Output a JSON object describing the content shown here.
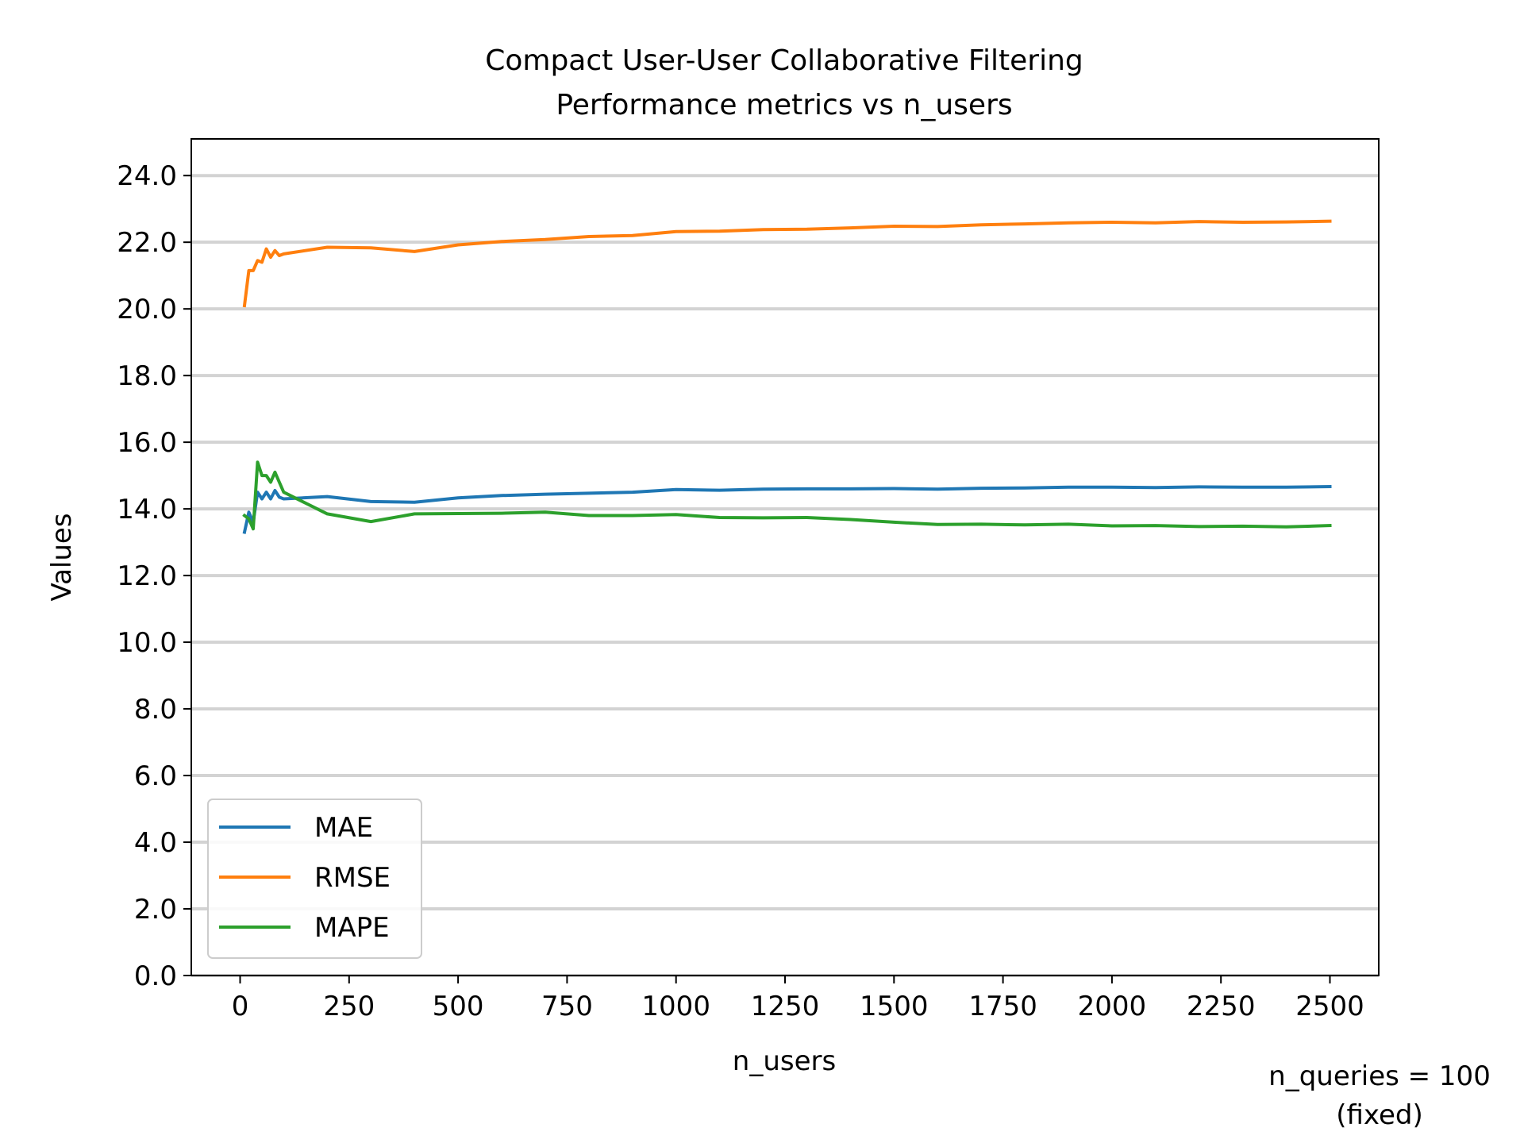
{
  "chart_data": {
    "type": "line",
    "title": "Compact User-User Collaborative Filtering",
    "subtitle": "Performance metrics vs n_users",
    "xlabel": "n_users",
    "ylabel": "Values",
    "annotation_line1": "n_queries = 100",
    "annotation_line2": "(fixed)",
    "xlim": [
      -112,
      2612
    ],
    "ylim": [
      0,
      25.1
    ],
    "xticks": [
      0,
      250,
      500,
      750,
      1000,
      1250,
      1500,
      1750,
      2000,
      2250,
      2500
    ],
    "xtick_labels": [
      "0",
      "250",
      "500",
      "750",
      "1000",
      "1250",
      "1500",
      "1750",
      "2000",
      "2250",
      "2500"
    ],
    "yticks": [
      0,
      2,
      4,
      6,
      8,
      10,
      12,
      14,
      16,
      18,
      20,
      22,
      24
    ],
    "ytick_labels": [
      "0.0",
      "2.0",
      "4.0",
      "6.0",
      "8.0",
      "10.0",
      "12.0",
      "14.0",
      "16.0",
      "18.0",
      "20.0",
      "22.0",
      "24.0"
    ],
    "grid": "horizontal",
    "legend_position": "lower-left",
    "x": [
      10,
      20,
      30,
      40,
      50,
      60,
      70,
      80,
      90,
      100,
      200,
      300,
      400,
      500,
      600,
      700,
      800,
      900,
      1000,
      1100,
      1200,
      1300,
      1400,
      1500,
      1600,
      1700,
      1800,
      1900,
      2000,
      2100,
      2200,
      2300,
      2400,
      2500
    ],
    "series": [
      {
        "name": "MAE",
        "color": "#1f77b4",
        "values": [
          13.3,
          13.9,
          13.6,
          14.5,
          14.3,
          14.5,
          14.3,
          14.55,
          14.35,
          14.3,
          14.37,
          14.22,
          14.2,
          14.33,
          14.4,
          14.44,
          14.47,
          14.5,
          14.58,
          14.56,
          14.59,
          14.6,
          14.6,
          14.61,
          14.59,
          14.62,
          14.63,
          14.65,
          14.65,
          14.64,
          14.66,
          14.65,
          14.65,
          14.67
        ]
      },
      {
        "name": "RMSE",
        "color": "#ff7f0e",
        "values": [
          20.1,
          21.15,
          21.15,
          21.45,
          21.4,
          21.8,
          21.55,
          21.75,
          21.6,
          21.65,
          21.85,
          21.83,
          21.72,
          21.92,
          22.02,
          22.08,
          22.17,
          22.2,
          22.32,
          22.33,
          22.38,
          22.39,
          22.43,
          22.48,
          22.47,
          22.52,
          22.55,
          22.58,
          22.6,
          22.58,
          22.62,
          22.6,
          22.61,
          22.63
        ]
      },
      {
        "name": "MAPE",
        "color": "#2ca02c",
        "values": [
          13.8,
          13.7,
          13.4,
          15.4,
          15.0,
          15.0,
          14.8,
          15.1,
          14.8,
          14.5,
          13.85,
          13.62,
          13.85,
          13.86,
          13.87,
          13.9,
          13.8,
          13.8,
          13.83,
          13.74,
          13.73,
          13.74,
          13.68,
          13.6,
          13.53,
          13.54,
          13.52,
          13.54,
          13.49,
          13.5,
          13.47,
          13.48,
          13.46,
          13.5
        ]
      }
    ]
  }
}
